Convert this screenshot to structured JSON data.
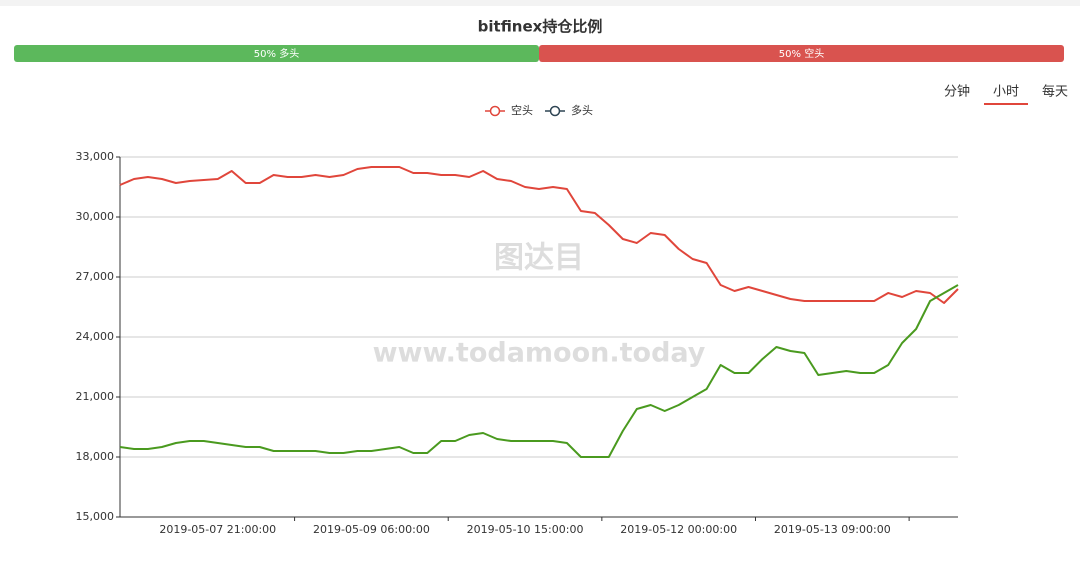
{
  "chart_data": {
    "type": "line",
    "title": "bitfinex持仓比例",
    "ratio_bar": [
      {
        "label": "50% 多头",
        "value": 50,
        "color": "#5cb85c"
      },
      {
        "label": "50% 空头",
        "value": 50,
        "color": "#d9534f"
      }
    ],
    "tabs": [
      "分钟",
      "小时",
      "每天"
    ],
    "active_tab": 1,
    "watermark": [
      "图达目",
      "www.todamoon.today"
    ],
    "categories": [
      null,
      null,
      null,
      null,
      null,
      null,
      null,
      "2019-05-07 21:00:00",
      null,
      null,
      null,
      null,
      null,
      null,
      null,
      null,
      null,
      null,
      "2019-05-09 06:00:00",
      null,
      null,
      null,
      null,
      null,
      null,
      null,
      null,
      null,
      null,
      "2019-05-10 15:00:00",
      null,
      null,
      null,
      null,
      null,
      null,
      null,
      null,
      null,
      null,
      "2019-05-12 00:00:00",
      null,
      null,
      null,
      null,
      null,
      null,
      null,
      null,
      null,
      null,
      "2019-05-13 09:00:00",
      null,
      null,
      null,
      null,
      null,
      null,
      null,
      null,
      null
    ],
    "series": [
      {
        "name": "空头",
        "color": "#e0463b",
        "legend_color": "#e0463b",
        "values": [
          31600,
          31900,
          32000,
          31900,
          31700,
          31800,
          31850,
          31900,
          32300,
          31700,
          31700,
          32100,
          32000,
          32000,
          32100,
          32000,
          32100,
          32400,
          32500,
          32500,
          32500,
          32200,
          32200,
          32100,
          32100,
          32000,
          32300,
          31900,
          31800,
          31500,
          31400,
          31500,
          31400,
          30300,
          30200,
          29600,
          28900,
          28700,
          29200,
          29100,
          28400,
          27900,
          27700,
          26600,
          26300,
          26500,
          26300,
          26100,
          25900,
          25800,
          25800,
          25800,
          25800,
          25800,
          25800,
          26200,
          26000,
          26300,
          26200,
          25700,
          26400
        ]
      },
      {
        "name": "多头",
        "color": "#4a9a1f",
        "legend_color": "#2f4554",
        "values": [
          18500,
          18400,
          18400,
          18500,
          18700,
          18800,
          18800,
          18700,
          18600,
          18500,
          18500,
          18300,
          18300,
          18300,
          18300,
          18200,
          18200,
          18300,
          18300,
          18400,
          18500,
          18200,
          18200,
          18800,
          18800,
          19100,
          19200,
          18900,
          18800,
          18800,
          18800,
          18800,
          18700,
          18000,
          18000,
          18000,
          19300,
          20400,
          20600,
          20300,
          20600,
          21000,
          21400,
          22600,
          22200,
          22200,
          22900,
          23500,
          23300,
          23200,
          22100,
          22200,
          22300,
          22200,
          22200,
          22600,
          23700,
          24400,
          25800,
          26200,
          26600
        ]
      }
    ],
    "ylim": [
      15000,
      33000
    ],
    "yticks": [
      {
        "value": 15000,
        "label": "15,000"
      },
      {
        "value": 18000,
        "label": "18,000"
      },
      {
        "value": 21000,
        "label": "21,000"
      },
      {
        "value": 24000,
        "label": "24,000"
      },
      {
        "value": 27000,
        "label": "27,000"
      },
      {
        "value": 30000,
        "label": "30,000"
      },
      {
        "value": 33000,
        "label": "33,000"
      }
    ],
    "grid": true
  }
}
